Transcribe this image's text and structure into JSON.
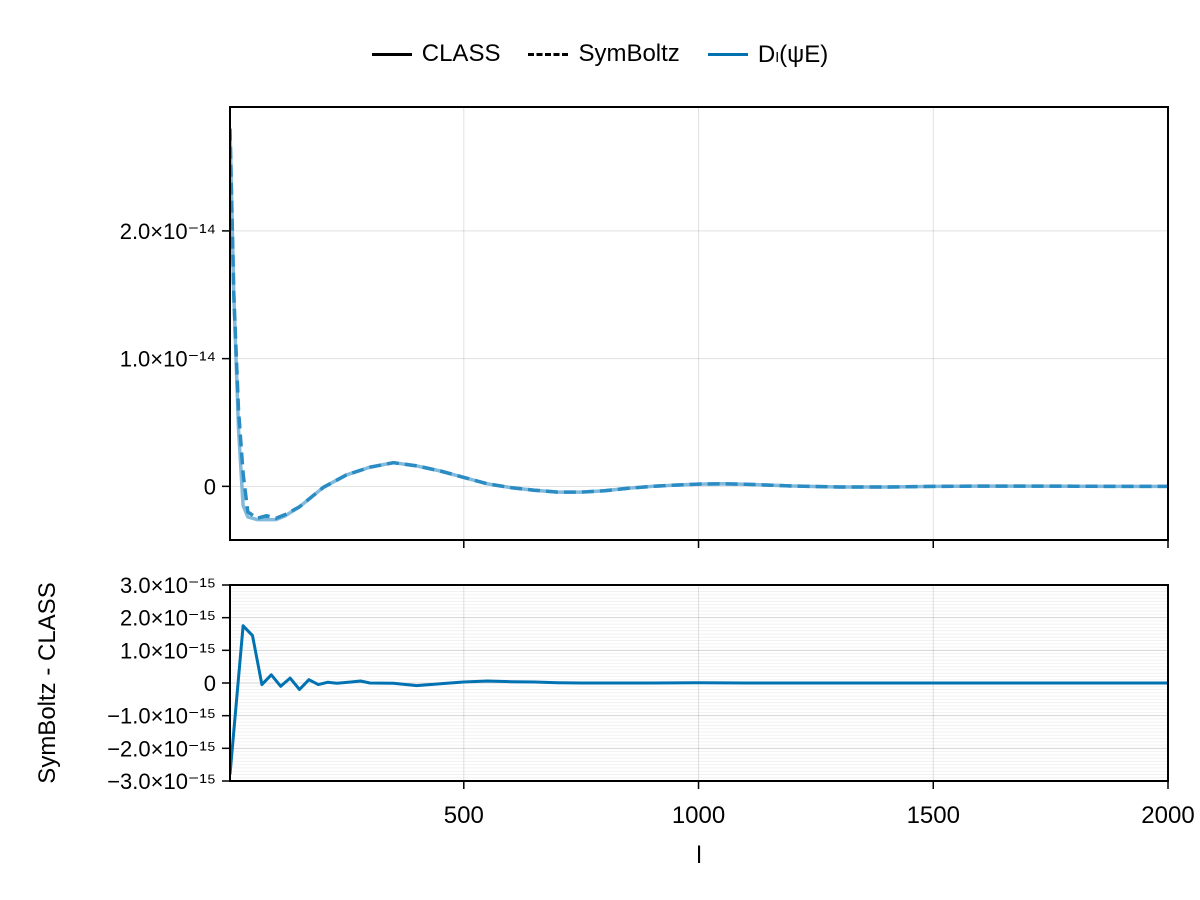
{
  "legend": {
    "items": [
      {
        "label": "CLASS",
        "style": "solid",
        "color": "#000000"
      },
      {
        "label": "SymBoltz",
        "style": "dashed",
        "color": "#000000"
      },
      {
        "label": "Dₗ(ψE)",
        "style": "solid",
        "color": "#0072b2"
      }
    ]
  },
  "chart_data": [
    {
      "type": "line",
      "title": "",
      "xlabel": "",
      "ylabel": "",
      "xlim": [
        2,
        2000
      ],
      "ylim": [
        -4.2e-15,
        2.97e-14
      ],
      "grid": true,
      "ytick_labels": [
        "0",
        "1.0×10⁻¹⁴",
        "2.0×10⁻¹⁴"
      ],
      "yticks": [
        0,
        1e-14,
        2e-14
      ],
      "xticks": [
        500,
        1000,
        1500,
        2000
      ],
      "x": [
        2,
        10,
        20,
        30,
        40,
        60,
        80,
        100,
        120,
        150,
        180,
        200,
        250,
        300,
        350,
        400,
        450,
        500,
        550,
        600,
        650,
        700,
        750,
        800,
        850,
        900,
        950,
        1000,
        1050,
        1100,
        1150,
        1200,
        1300,
        1400,
        1500,
        1600,
        1700,
        1800,
        1900,
        2000
      ],
      "series": [
        {
          "name": "CLASS",
          "style": "solid",
          "color": "#6baed6",
          "values": [
            2.8e-14,
            1.5e-14,
            4.5e-15,
            -1.5e-15,
            -2.4e-15,
            -2.6e-15,
            -2.6e-15,
            -2.6e-15,
            -2.3e-15,
            -1.6e-15,
            -7e-16,
            -1e-16,
            9e-16,
            1.5e-15,
            1.85e-15,
            1.6e-15,
            1.2e-15,
            7e-16,
            2e-16,
            -1e-16,
            -3e-16,
            -4.5e-16,
            -4.5e-16,
            -3.5e-16,
            -1.5e-16,
            0,
            1e-16,
            1.8e-16,
            2e-16,
            1.6e-16,
            1e-16,
            3e-17,
            -5e-17,
            -5e-17,
            0,
            2e-17,
            2e-17,
            1e-17,
            0,
            0
          ]
        },
        {
          "name": "SymBoltz",
          "style": "dashed",
          "color": "#2b8cc4",
          "values": [
            2.8e-14,
            1.5e-14,
            6e-15,
            1e-15,
            -2e-15,
            -2.5e-15,
            -2.3e-15,
            -2.5e-15,
            -2.2e-15,
            -1.6e-15,
            -7e-16,
            -1e-16,
            9e-16,
            1.5e-15,
            1.85e-15,
            1.6e-15,
            1.2e-15,
            7e-16,
            2e-16,
            -1e-16,
            -3e-16,
            -4.5e-16,
            -4.5e-16,
            -3.5e-16,
            -1.5e-16,
            0,
            1e-16,
            1.8e-16,
            2e-16,
            1.6e-16,
            1e-16,
            3e-17,
            -5e-17,
            -5e-17,
            0,
            2e-17,
            2e-17,
            1e-17,
            0,
            0
          ]
        }
      ]
    },
    {
      "type": "line",
      "title": "",
      "xlabel": "l",
      "ylabel": "SymBoltz - CLASS",
      "xlim": [
        2,
        2000
      ],
      "ylim": [
        -3e-15,
        3e-15
      ],
      "grid": true,
      "minor_grid": true,
      "ytick_labels": [
        "−3.0×10⁻¹⁵",
        "−2.0×10⁻¹⁵",
        "−1.0×10⁻¹⁵",
        "0",
        "1.0×10⁻¹⁵",
        "2.0×10⁻¹⁵",
        "3.0×10⁻¹⁵"
      ],
      "yticks": [
        -3e-15,
        -2e-15,
        -1e-15,
        0,
        1e-15,
        2e-15,
        3e-15
      ],
      "xtick_labels": [
        "500",
        "1000",
        "1500",
        "2000"
      ],
      "xticks": [
        500,
        1000,
        1500,
        2000
      ],
      "series": [
        {
          "name": "Dₗ(ψE) difference",
          "color": "#0072b2",
          "x": [
            2,
            30,
            50,
            70,
            90,
            110,
            130,
            150,
            170,
            190,
            210,
            230,
            260,
            280,
            300,
            350,
            400,
            450,
            500,
            550,
            600,
            650,
            700,
            750,
            800,
            900,
            1000,
            1100,
            1200,
            1400,
            1600,
            1800,
            2000
          ],
          "values": [
            -2.8e-15,
            1.75e-15,
            1.45e-15,
            -5e-17,
            2.5e-16,
            -1e-16,
            1.5e-16,
            -2e-16,
            1e-16,
            -5e-17,
            2e-17,
            -1e-17,
            3e-17,
            6e-17,
            0,
            -1e-17,
            -8e-17,
            -2e-17,
            3e-17,
            6e-17,
            4e-17,
            3e-17,
            1e-17,
            0,
            0,
            0,
            1e-17,
            0,
            0,
            0,
            0,
            0,
            0
          ]
        }
      ]
    }
  ]
}
